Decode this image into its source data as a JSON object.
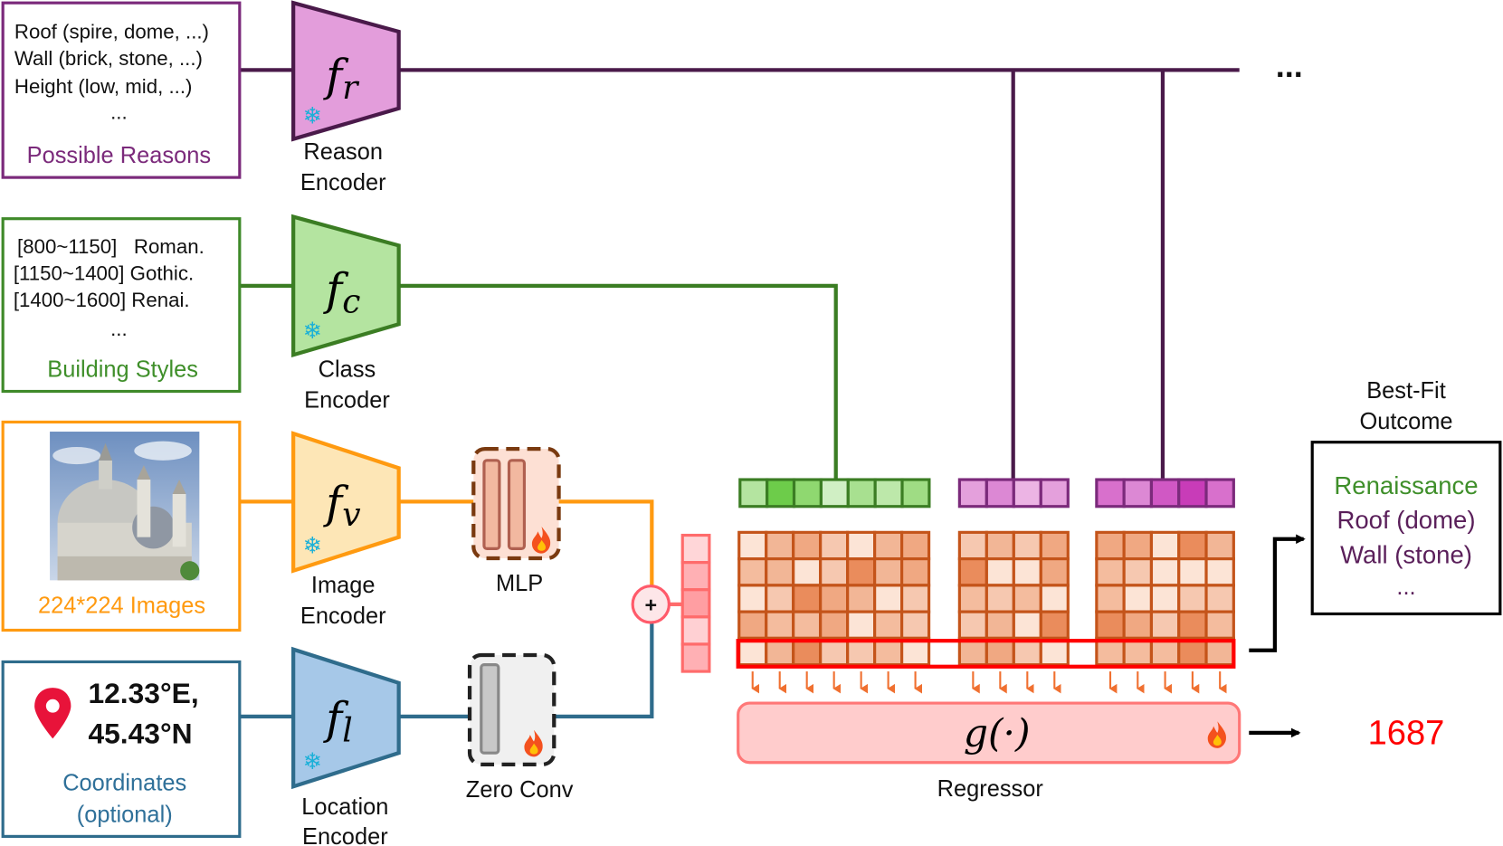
{
  "reasons_box": {
    "lines": [
      "Roof (spire, dome, ...)",
      "Wall (brick, stone, ...)",
      "Height (low, mid, ...)",
      "..."
    ],
    "caption": "Possible Reasons",
    "color": "#7b2a7b"
  },
  "styles_box": {
    "lines": [
      "[800~1150]   Roman.",
      "[1150~1400] Gothic.",
      "[1400~1600] Renai.",
      "..."
    ],
    "caption": "Building Styles",
    "color": "#3f8a2a"
  },
  "images_box": {
    "caption": "224*224 Images",
    "color": "#ff9a10"
  },
  "coords_box": {
    "lon": "12.33°E,",
    "lat": "45.43°N",
    "caption_1": "Coordinates",
    "caption_2": "(optional)",
    "color": "#2f6c8c",
    "icon": "map-pin-icon"
  },
  "encoders": {
    "reason": {
      "symbol": "f",
      "sub": "r",
      "label_1": "Reason",
      "label_2": "Encoder",
      "frozen": true
    },
    "class": {
      "symbol": "f",
      "sub": "c",
      "label_1": "Class",
      "label_2": "Encoder",
      "frozen": true
    },
    "image": {
      "symbol": "f",
      "sub": "v",
      "label_1": "Image",
      "label_2": "Encoder",
      "frozen": true
    },
    "location": {
      "symbol": "f",
      "sub": "l",
      "label_1": "Location",
      "label_2": "Encoder",
      "frozen": true
    }
  },
  "mlp": {
    "label": "MLP",
    "trainable": true
  },
  "zero_conv": {
    "label": "Zero Conv",
    "trainable": true
  },
  "fusion": {
    "symbol": "+"
  },
  "continuation": "...",
  "regressor": {
    "formula": "g(·)",
    "label": "Regressor",
    "trainable": true
  },
  "outcome": {
    "title_1": "Best-Fit",
    "title_2": "Outcome",
    "style": "Renaissance",
    "reason_1": "Roof (dome)",
    "reason_2": "Wall (stone)",
    "more": "...",
    "style_color": "#3f8f2a",
    "reason_color": "#5a1f5a"
  },
  "prediction": {
    "value": "1687",
    "color": "#ff0000"
  }
}
